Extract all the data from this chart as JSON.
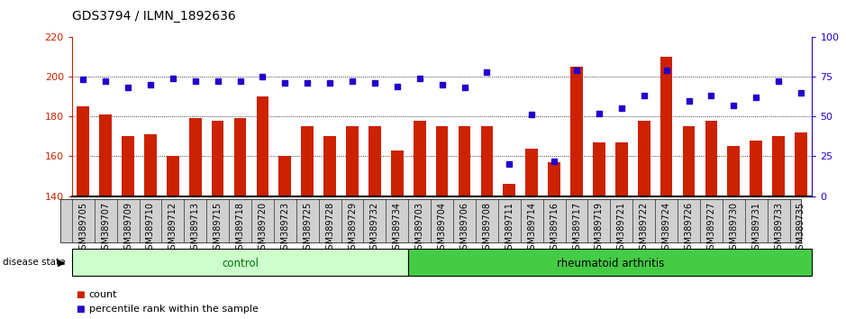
{
  "title": "GDS3794 / ILMN_1892636",
  "samples": [
    "GSM389705",
    "GSM389707",
    "GSM389709",
    "GSM389710",
    "GSM389712",
    "GSM389713",
    "GSM389715",
    "GSM389718",
    "GSM389720",
    "GSM389723",
    "GSM389725",
    "GSM389728",
    "GSM389729",
    "GSM389732",
    "GSM389734",
    "GSM389703",
    "GSM389704",
    "GSM389706",
    "GSM389708",
    "GSM389711",
    "GSM389714",
    "GSM389716",
    "GSM389717",
    "GSM389719",
    "GSM389721",
    "GSM389722",
    "GSM389724",
    "GSM389726",
    "GSM389727",
    "GSM389730",
    "GSM389731",
    "GSM389733",
    "GSM389735"
  ],
  "bar_values": [
    185,
    181,
    170,
    171,
    160,
    179,
    178,
    179,
    190,
    160,
    175,
    170,
    175,
    175,
    163,
    178,
    175,
    175,
    175,
    146,
    164,
    157,
    205,
    167,
    167,
    178,
    210,
    175,
    178,
    165,
    168,
    170,
    172
  ],
  "dot_values_pct": [
    73,
    72,
    68,
    70,
    74,
    72,
    72,
    72,
    75,
    71,
    71,
    71,
    72,
    71,
    69,
    74,
    70,
    68,
    78,
    20,
    51,
    22,
    79,
    52,
    55,
    63,
    79,
    60,
    63,
    57,
    62,
    72,
    65
  ],
  "control_count": 15,
  "rheumatoid_count": 18,
  "ylim_left": [
    140,
    220
  ],
  "ylim_right": [
    0,
    100
  ],
  "yticks_left": [
    140,
    160,
    180,
    200,
    220
  ],
  "yticks_right": [
    0,
    25,
    50,
    75,
    100
  ],
  "bar_color": "#cc2200",
  "dot_color": "#2200cc",
  "control_bg": "#ccffcc",
  "control_text": "#007700",
  "ra_bg": "#44cc44",
  "ra_text": "#000000",
  "tick_bg": "#d0d0d0",
  "title_fontsize": 10,
  "tick_fontsize": 7,
  "legend_fontsize": 8,
  "grid_yticks": [
    160,
    180,
    200
  ]
}
